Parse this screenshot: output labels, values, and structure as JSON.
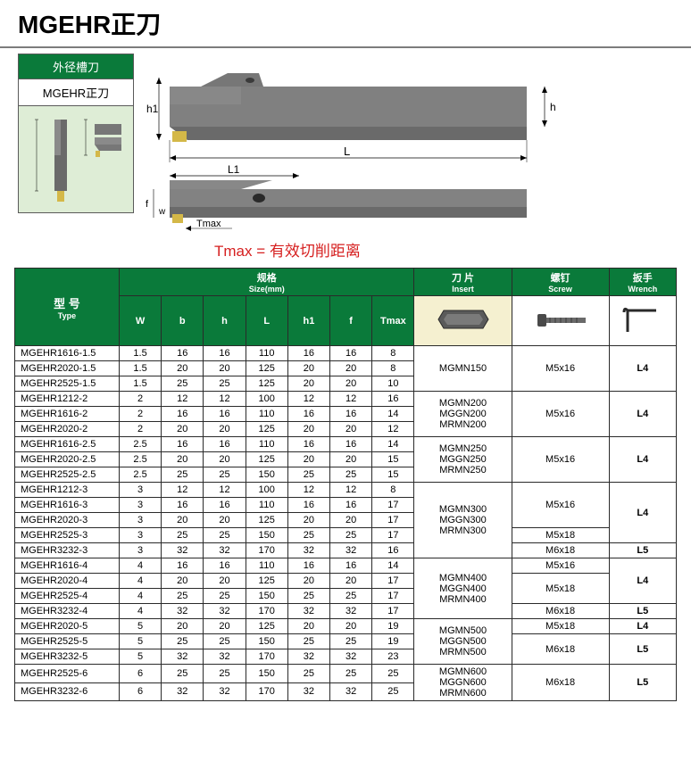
{
  "title": "MGEHR正刀",
  "info_box": {
    "header": "外径槽刀",
    "sub": "MGEHR正刀"
  },
  "diagram_labels": {
    "h1": "h1",
    "h": "h",
    "L": "L",
    "L1": "L1",
    "f": "f",
    "w": "w",
    "Tmax": "Tmax"
  },
  "tmax_note": "Tmax = 有效切削距离",
  "headers": {
    "type": "型 号",
    "type_en": "Type",
    "size": "规格",
    "size_en": "Size(mm)",
    "insert": "刀 片",
    "insert_en": "Insert",
    "screw": "螺钉",
    "screw_en": "Screw",
    "wrench": "扳手",
    "wrench_en": "Wrench",
    "cols": {
      "W": "W",
      "b": "b",
      "h": "h",
      "L": "L",
      "h1": "h1",
      "f": "f",
      "Tmax": "Tmax"
    }
  },
  "groups": [
    {
      "rows": [
        {
          "type": "MGEHR1616-1.5",
          "W": "1.5",
          "b": "16",
          "h": "16",
          "L": "110",
          "h1": "16",
          "f": "16",
          "Tmax": "8"
        },
        {
          "type": "MGEHR2020-1.5",
          "W": "1.5",
          "b": "20",
          "h": "20",
          "L": "125",
          "h1": "20",
          "f": "20",
          "Tmax": "8"
        },
        {
          "type": "MGEHR2525-1.5",
          "W": "1.5",
          "b": "25",
          "h": "25",
          "L": "125",
          "h1": "20",
          "f": "20",
          "Tmax": "10"
        }
      ],
      "insert_blocks": [
        {
          "text": "MGMN150",
          "span": 3
        }
      ],
      "screw_blocks": [
        {
          "text": "M5x16",
          "span": 3
        }
      ],
      "wrench_blocks": [
        {
          "text": "L4",
          "span": 3
        }
      ]
    },
    {
      "rows": [
        {
          "type": "MGEHR1212-2",
          "W": "2",
          "b": "12",
          "h": "12",
          "L": "100",
          "h1": "12",
          "f": "12",
          "Tmax": "16"
        },
        {
          "type": "MGEHR1616-2",
          "W": "2",
          "b": "16",
          "h": "16",
          "L": "110",
          "h1": "16",
          "f": "16",
          "Tmax": "14"
        },
        {
          "type": "MGEHR2020-2",
          "W": "2",
          "b": "20",
          "h": "20",
          "L": "125",
          "h1": "20",
          "f": "20",
          "Tmax": "12"
        }
      ],
      "insert_blocks": [
        {
          "text": "MGMN200\nMGGN200\nMRMN200",
          "span": 3
        }
      ],
      "screw_blocks": [
        {
          "text": "M5x16",
          "span": 3
        }
      ],
      "wrench_blocks": [
        {
          "text": "L4",
          "span": 3
        }
      ]
    },
    {
      "rows": [
        {
          "type": "MGEHR1616-2.5",
          "W": "2.5",
          "b": "16",
          "h": "16",
          "L": "110",
          "h1": "16",
          "f": "16",
          "Tmax": "14"
        },
        {
          "type": "MGEHR2020-2.5",
          "W": "2.5",
          "b": "20",
          "h": "20",
          "L": "125",
          "h1": "20",
          "f": "20",
          "Tmax": "15"
        },
        {
          "type": "MGEHR2525-2.5",
          "W": "2.5",
          "b": "25",
          "h": "25",
          "L": "150",
          "h1": "25",
          "f": "25",
          "Tmax": "15"
        }
      ],
      "insert_blocks": [
        {
          "text": "MGMN250\nMGGN250\nMRMN250",
          "span": 3
        }
      ],
      "screw_blocks": [
        {
          "text": "M5x16",
          "span": 3
        }
      ],
      "wrench_blocks": [
        {
          "text": "L4",
          "span": 3
        }
      ]
    },
    {
      "rows": [
        {
          "type": "MGEHR1212-3",
          "W": "3",
          "b": "12",
          "h": "12",
          "L": "100",
          "h1": "12",
          "f": "12",
          "Tmax": "8"
        },
        {
          "type": "MGEHR1616-3",
          "W": "3",
          "b": "16",
          "h": "16",
          "L": "110",
          "h1": "16",
          "f": "16",
          "Tmax": "17"
        },
        {
          "type": "MGEHR2020-3",
          "W": "3",
          "b": "20",
          "h": "20",
          "L": "125",
          "h1": "20",
          "f": "20",
          "Tmax": "17"
        },
        {
          "type": "MGEHR2525-3",
          "W": "3",
          "b": "25",
          "h": "25",
          "L": "150",
          "h1": "25",
          "f": "25",
          "Tmax": "17"
        },
        {
          "type": "MGEHR3232-3",
          "W": "3",
          "b": "32",
          "h": "32",
          "L": "170",
          "h1": "32",
          "f": "32",
          "Tmax": "16"
        }
      ],
      "insert_blocks": [
        {
          "text": "MGMN300\nMGGN300\nMRMN300",
          "span": 5
        }
      ],
      "screw_blocks": [
        {
          "text": "M5x16",
          "span": 3
        },
        {
          "text": "M5x18",
          "span": 1
        },
        {
          "text": "M6x18",
          "span": 1
        }
      ],
      "wrench_blocks": [
        {
          "text": "L4",
          "span": 4
        },
        {
          "text": "L5",
          "span": 1
        }
      ]
    },
    {
      "rows": [
        {
          "type": "MGEHR1616-4",
          "W": "4",
          "b": "16",
          "h": "16",
          "L": "110",
          "h1": "16",
          "f": "16",
          "Tmax": "14"
        },
        {
          "type": "MGEHR2020-4",
          "W": "4",
          "b": "20",
          "h": "20",
          "L": "125",
          "h1": "20",
          "f": "20",
          "Tmax": "17"
        },
        {
          "type": "MGEHR2525-4",
          "W": "4",
          "b": "25",
          "h": "25",
          "L": "150",
          "h1": "25",
          "f": "25",
          "Tmax": "17"
        },
        {
          "type": "MGEHR3232-4",
          "W": "4",
          "b": "32",
          "h": "32",
          "L": "170",
          "h1": "32",
          "f": "32",
          "Tmax": "17"
        }
      ],
      "insert_blocks": [
        {
          "text": "MGMN400\nMGGN400\nMRMN400",
          "span": 4
        }
      ],
      "screw_blocks": [
        {
          "text": "M5x16",
          "span": 1
        },
        {
          "text": "M5x18",
          "span": 2
        },
        {
          "text": "M6x18",
          "span": 1
        }
      ],
      "wrench_blocks": [
        {
          "text": "L4",
          "span": 3
        },
        {
          "text": "L5",
          "span": 1
        }
      ]
    },
    {
      "rows": [
        {
          "type": "MGEHR2020-5",
          "W": "5",
          "b": "20",
          "h": "20",
          "L": "125",
          "h1": "20",
          "f": "20",
          "Tmax": "19"
        },
        {
          "type": "MGEHR2525-5",
          "W": "5",
          "b": "25",
          "h": "25",
          "L": "150",
          "h1": "25",
          "f": "25",
          "Tmax": "19"
        },
        {
          "type": "MGEHR3232-5",
          "W": "5",
          "b": "32",
          "h": "32",
          "L": "170",
          "h1": "32",
          "f": "32",
          "Tmax": "23"
        }
      ],
      "insert_blocks": [
        {
          "text": "MGMN500\nMGGN500\nMRMN500",
          "span": 3
        }
      ],
      "screw_blocks": [
        {
          "text": "M5x18",
          "span": 1
        },
        {
          "text": "M6x18",
          "span": 2
        }
      ],
      "wrench_blocks": [
        {
          "text": "L4",
          "span": 1
        },
        {
          "text": "L5",
          "span": 2
        }
      ]
    },
    {
      "rows": [
        {
          "type": "MGEHR2525-6",
          "W": "6",
          "b": "25",
          "h": "25",
          "L": "150",
          "h1": "25",
          "f": "25",
          "Tmax": "25"
        },
        {
          "type": "MGEHR3232-6",
          "W": "6",
          "b": "32",
          "h": "32",
          "L": "170",
          "h1": "32",
          "f": "32",
          "Tmax": "25"
        }
      ],
      "insert_blocks": [
        {
          "text": "MGMN600\nMGGN600\nMRMN600",
          "span": 2
        }
      ],
      "screw_blocks": [
        {
          "text": "M6x18",
          "span": 2
        }
      ],
      "wrench_blocks": [
        {
          "text": "L5",
          "span": 2
        }
      ]
    }
  ],
  "colors": {
    "header_green": "#0a7a3a",
    "red_note": "#d62020",
    "border": "#2a2a2a",
    "insert_bg": "#f5f0d0",
    "tool_body": "#6a6a6a",
    "insert_yellow": "#d4b848"
  }
}
